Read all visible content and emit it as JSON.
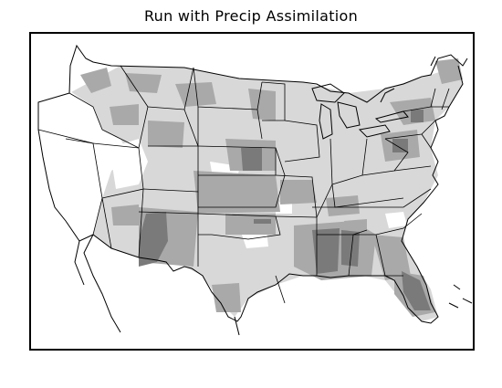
{
  "title": "Run with Precip Assimilation",
  "colors": {
    "background": "#ffffff",
    "outline": "#000000",
    "shade_light": "#d8d8d8",
    "shade_medium": "#a9a9a9",
    "shade_dark": "#7a7a7a"
  }
}
